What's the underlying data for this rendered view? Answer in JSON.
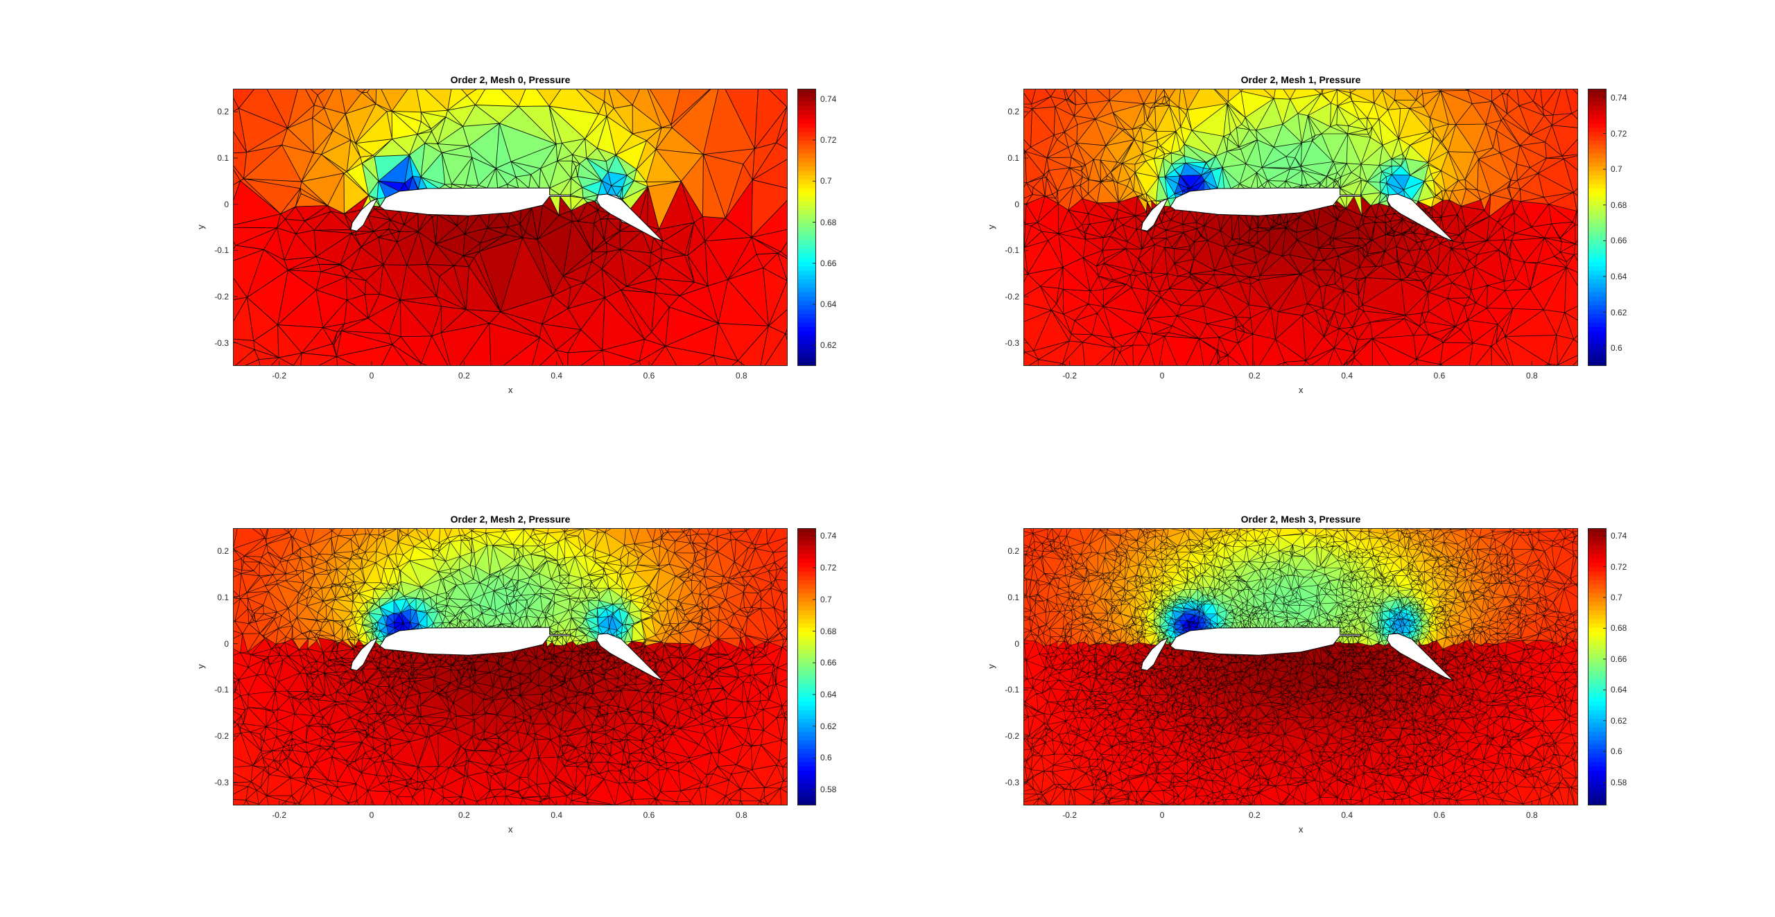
{
  "chart_data": [
    {
      "type": "heatmap",
      "title": "Order 2, Mesh 0, Pressure",
      "xlabel": "x",
      "ylabel": "y",
      "xlim": [
        -0.3,
        0.9
      ],
      "ylim": [
        -0.35,
        0.25
      ],
      "xticks": [
        "-0.2",
        "0",
        "0.2",
        "0.4",
        "0.6",
        "0.8"
      ],
      "yticks": [
        "0.2",
        "0.1",
        "0",
        "-0.1",
        "-0.2",
        "-0.3"
      ],
      "colorbar": {
        "min": 0.61,
        "max": 0.745,
        "ticks": [
          "0.74",
          "0.72",
          "0.7",
          "0.68",
          "0.66",
          "0.64",
          "0.62"
        ]
      },
      "mesh_level": 0
    },
    {
      "type": "heatmap",
      "title": "Order 2, Mesh 1, Pressure",
      "xlabel": "x",
      "ylabel": "y",
      "xlim": [
        -0.3,
        0.9
      ],
      "ylim": [
        -0.35,
        0.25
      ],
      "xticks": [
        "-0.2",
        "0",
        "0.2",
        "0.4",
        "0.6",
        "0.8"
      ],
      "yticks": [
        "0.2",
        "0.1",
        "0",
        "-0.1",
        "-0.2",
        "-0.3"
      ],
      "colorbar": {
        "min": 0.59,
        "max": 0.745,
        "ticks": [
          "0.74",
          "0.72",
          "0.7",
          "0.68",
          "0.66",
          "0.64",
          "0.62",
          "0.6"
        ]
      },
      "mesh_level": 1
    },
    {
      "type": "heatmap",
      "title": "Order 2, Mesh 2, Pressure",
      "xlabel": "x",
      "ylabel": "y",
      "xlim": [
        -0.3,
        0.9
      ],
      "ylim": [
        -0.35,
        0.25
      ],
      "xticks": [
        "-0.2",
        "0",
        "0.2",
        "0.4",
        "0.6",
        "0.8"
      ],
      "yticks": [
        "0.2",
        "0.1",
        "0",
        "-0.1",
        "-0.2",
        "-0.3"
      ],
      "colorbar": {
        "min": 0.57,
        "max": 0.745,
        "ticks": [
          "0.74",
          "0.72",
          "0.7",
          "0.68",
          "0.66",
          "0.64",
          "0.62",
          "0.6",
          "0.58"
        ]
      },
      "mesh_level": 2
    },
    {
      "type": "heatmap",
      "title": "Order 2, Mesh 3, Pressure",
      "xlabel": "x",
      "ylabel": "y",
      "xlim": [
        -0.3,
        0.9
      ],
      "ylim": [
        -0.35,
        0.25
      ],
      "xticks": [
        "-0.2",
        "0",
        "0.2",
        "0.4",
        "0.6",
        "0.8"
      ],
      "yticks": [
        "0.2",
        "0.1",
        "0",
        "-0.1",
        "-0.2",
        "-0.3"
      ],
      "colorbar": {
        "min": 0.565,
        "max": 0.745,
        "ticks": [
          "0.74",
          "0.72",
          "0.7",
          "0.68",
          "0.66",
          "0.64",
          "0.62",
          "0.6",
          "0.58"
        ]
      },
      "mesh_level": 3
    }
  ]
}
